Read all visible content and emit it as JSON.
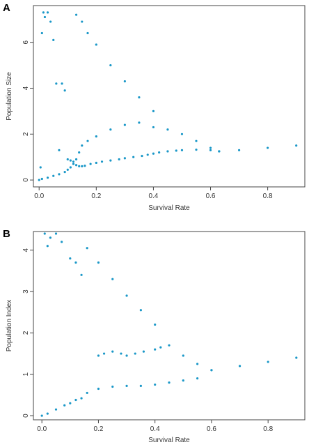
{
  "chart_data": [
    {
      "type": "scatter",
      "panel_label": "A",
      "xlabel": "Survival Rate",
      "ylabel": "Population Size",
      "xlim": [
        -0.02,
        0.93
      ],
      "ylim": [
        -0.3,
        7.6
      ],
      "xticks": [
        0.0,
        0.2,
        0.4,
        0.6,
        0.8
      ],
      "xtick_labels": [
        "0.0",
        "0.2",
        "0.4",
        "0.6",
        "0.8"
      ],
      "yticks": [
        0,
        2,
        4,
        6
      ],
      "ytick_labels": [
        "0",
        "2",
        "4",
        "6"
      ],
      "color": "#1b98c8",
      "grid": false,
      "series": [
        {
          "x": [
            0.0,
            0.005,
            0.01,
            0.015,
            0.02,
            0.03,
            0.04,
            0.05,
            0.06,
            0.07,
            0.08,
            0.09,
            0.1,
            0.11,
            0.12,
            0.13,
            0.14,
            0.15,
            0.16,
            0.18,
            0.2,
            0.22,
            0.25,
            0.28,
            0.3,
            0.33,
            0.36,
            0.38,
            0.4,
            0.42,
            0.45,
            0.48,
            0.5,
            0.55,
            0.6,
            0.63,
            0.7,
            0.8,
            0.9
          ],
          "y": [
            0.0,
            0.55,
            6.4,
            7.3,
            7.1,
            7.3,
            6.9,
            6.1,
            4.2,
            1.3,
            4.2,
            3.9,
            0.9,
            0.85,
            0.8,
            0.65,
            0.6,
            0.6,
            0.62,
            0.7,
            0.75,
            0.8,
            0.85,
            0.9,
            0.95,
            1.0,
            1.05,
            1.1,
            1.15,
            1.2,
            1.25,
            1.28,
            1.3,
            1.32,
            1.3,
            1.25,
            1.3,
            1.4,
            1.5
          ]
        },
        {
          "x": [
            0.01,
            0.03,
            0.05,
            0.07,
            0.09,
            0.1,
            0.11,
            0.12,
            0.13,
            0.14,
            0.15,
            0.17,
            0.2,
            0.25,
            0.3,
            0.35,
            0.4,
            0.45,
            0.5,
            0.55,
            0.6,
            0.63
          ],
          "y": [
            0.05,
            0.1,
            0.18,
            0.25,
            0.35,
            0.45,
            0.55,
            0.7,
            0.9,
            1.2,
            1.5,
            1.7,
            1.9,
            2.2,
            2.4,
            2.5,
            2.3,
            2.2,
            2.0,
            1.7,
            1.4,
            1.25
          ]
        },
        {
          "x": [
            0.13,
            0.15,
            0.17,
            0.2,
            0.25,
            0.3,
            0.35,
            0.4
          ],
          "y": [
            7.2,
            6.9,
            6.4,
            5.9,
            5.0,
            4.3,
            3.6,
            3.0
          ]
        }
      ]
    },
    {
      "type": "scatter",
      "panel_label": "B",
      "xlabel": "Survival Rate",
      "ylabel": "Population Index",
      "xlim": [
        -0.03,
        0.93
      ],
      "ylim": [
        -0.1,
        4.45
      ],
      "xticks": [
        0.0,
        0.2,
        0.4,
        0.6,
        0.8
      ],
      "xtick_labels": [
        "0.0",
        "0.2",
        "0.4",
        "0.6",
        "0.8"
      ],
      "yticks": [
        0,
        1,
        2,
        3,
        4
      ],
      "ytick_labels": [
        "0",
        "1",
        "2",
        "3",
        "4"
      ],
      "color": "#1b98c8",
      "grid": false,
      "series": [
        {
          "x": [
            0.0,
            0.01,
            0.02,
            0.03,
            0.05,
            0.07,
            0.1,
            0.12,
            0.14,
            0.16,
            0.2,
            0.25,
            0.3,
            0.35,
            0.4,
            0.45,
            0.5,
            0.55,
            0.6,
            0.7,
            0.8,
            0.9
          ],
          "y": [
            0.0,
            4.4,
            4.1,
            4.3,
            4.4,
            4.2,
            3.8,
            3.7,
            3.4,
            4.05,
            3.7,
            3.3,
            2.9,
            2.55,
            2.2,
            1.7,
            1.45,
            1.25,
            1.1,
            1.2,
            1.3,
            1.4
          ]
        },
        {
          "x": [
            0.02,
            0.05,
            0.08,
            0.1,
            0.12,
            0.14,
            0.16,
            0.2,
            0.25,
            0.3,
            0.35,
            0.4,
            0.45,
            0.5,
            0.55,
            0.6
          ],
          "y": [
            0.05,
            0.15,
            0.25,
            0.3,
            0.38,
            0.42,
            0.55,
            0.65,
            0.7,
            0.72,
            0.72,
            0.75,
            0.8,
            0.85,
            0.9,
            1.1
          ]
        },
        {
          "x": [
            0.2,
            0.22,
            0.25,
            0.28,
            0.3,
            0.33,
            0.36,
            0.4,
            0.42
          ],
          "y": [
            1.45,
            1.5,
            1.55,
            1.5,
            1.45,
            1.5,
            1.55,
            1.6,
            1.65
          ]
        }
      ]
    }
  ]
}
